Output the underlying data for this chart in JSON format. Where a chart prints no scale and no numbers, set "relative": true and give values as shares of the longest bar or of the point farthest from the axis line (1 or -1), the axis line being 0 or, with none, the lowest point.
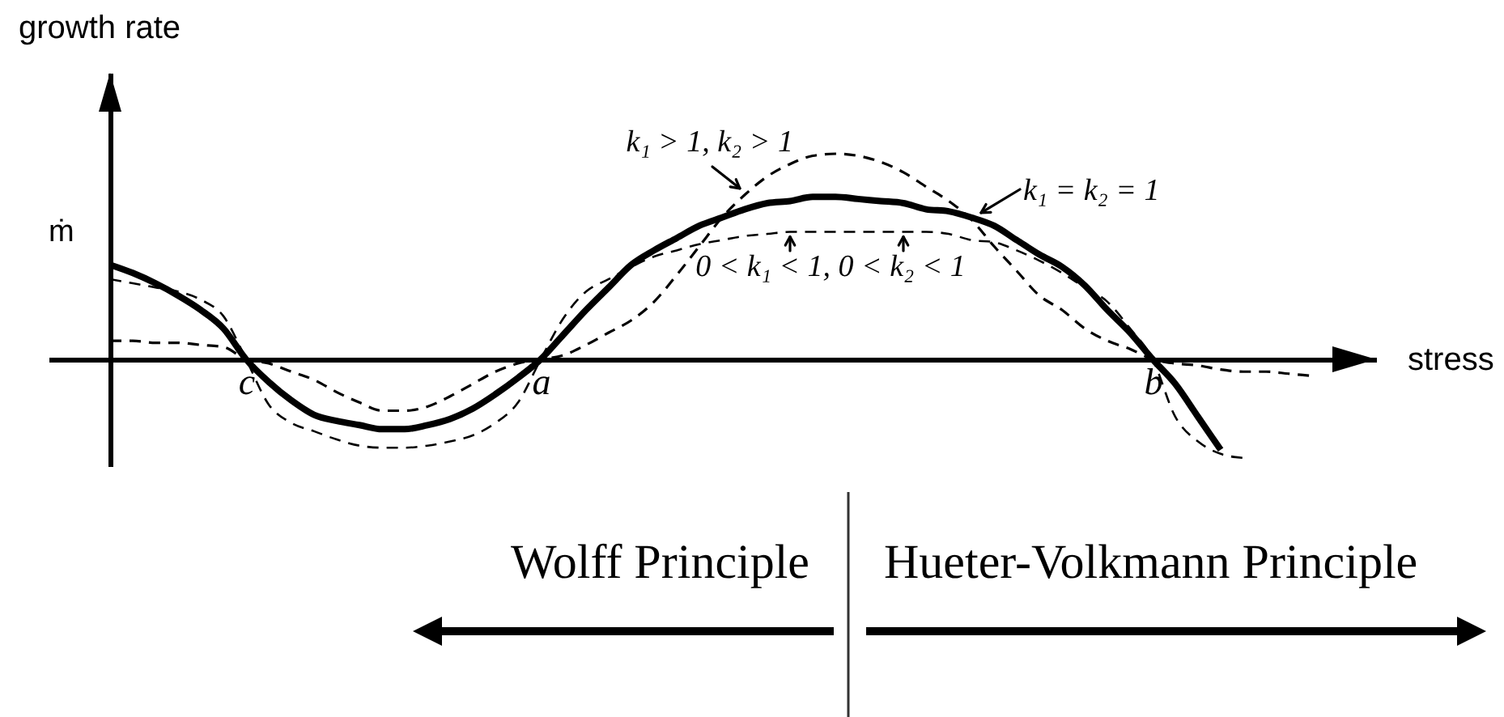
{
  "chart_data": {
    "type": "line",
    "relative": true,
    "ylabel": "growth rate",
    "xlabel": "stress",
    "tick_labels": "x",
    "categories": [
      null,
      null,
      null,
      null,
      null,
      null,
      "c",
      null,
      null,
      null,
      null,
      null,
      null,
      null,
      null,
      null,
      null,
      null,
      null,
      "a",
      null,
      null,
      null,
      null,
      null,
      null,
      null,
      null,
      null,
      null,
      null,
      null,
      null,
      null,
      null,
      null,
      null,
      null,
      null,
      null,
      null,
      null,
      null,
      null,
      null,
      null,
      "b",
      null,
      null,
      null,
      null,
      null,
      null,
      null
    ],
    "series": [
      {
        "name": "k₁ = k₂ = 1",
        "color": "#000000",
        "line_style": "solid",
        "values": [
          0.46,
          0.42,
          0.37,
          0.31,
          0.24,
          0.15,
          0,
          -0.11,
          -0.2,
          -0.27,
          -0.3,
          -0.32,
          -0.34,
          -0.34,
          -0.32,
          -0.29,
          -0.24,
          -0.17,
          -0.09,
          0,
          0.12,
          0.24,
          0.35,
          0.46,
          0.53,
          0.59,
          0.65,
          0.69,
          0.73,
          0.76,
          0.77,
          0.79,
          0.79,
          0.78,
          0.77,
          0.76,
          0.73,
          0.72,
          0.69,
          0.65,
          0.58,
          0.51,
          0.45,
          0.36,
          0.24,
          0.13,
          0,
          -0.12,
          -0.28,
          -0.44,
          null,
          null,
          null,
          null
        ]
      },
      {
        "name": "k₁ > 1, k₂ > 1",
        "color": "#000000",
        "line_style": "dashed",
        "values": [
          0.09,
          0.09,
          0.08,
          0.08,
          0.07,
          0.06,
          0,
          -0.02,
          -0.06,
          -0.1,
          -0.16,
          -0.21,
          -0.25,
          -0.25,
          -0.23,
          -0.18,
          -0.12,
          -0.06,
          -0.02,
          0,
          0.02,
          0.07,
          0.13,
          0.19,
          0.28,
          0.41,
          0.55,
          0.69,
          0.8,
          0.89,
          0.95,
          0.99,
          1,
          0.99,
          0.96,
          0.91,
          0.84,
          0.77,
          0.68,
          0.55,
          0.43,
          0.31,
          0.24,
          0.15,
          0.09,
          0.05,
          0,
          -0.02,
          -0.03,
          -0.05,
          -0.06,
          -0.06,
          -0.07,
          -0.08
        ]
      },
      {
        "name": "0 < k₁ < 1, 0 < k₂ < 1",
        "color": "#000000",
        "line_style": "dashed",
        "values": [
          0.39,
          0.37,
          0.35,
          0.33,
          0.29,
          0.21,
          0,
          -0.22,
          -0.31,
          -0.35,
          -0.39,
          -0.42,
          -0.43,
          -0.43,
          -0.42,
          -0.4,
          -0.37,
          -0.31,
          -0.21,
          0,
          0.2,
          0.33,
          0.39,
          0.45,
          0.5,
          0.53,
          0.56,
          0.58,
          0.6,
          0.61,
          0.62,
          0.62,
          0.62,
          0.62,
          0.62,
          0.62,
          0.62,
          0.61,
          0.58,
          0.57,
          0.53,
          0.48,
          0.42,
          0.35,
          0.28,
          0.15,
          0,
          -0.28,
          -0.4,
          -0.46,
          -0.48,
          null,
          null,
          null
        ]
      }
    ],
    "annotations": [
      "ṁ",
      "Wolff Principle",
      "Hueter-Volkmann Principle"
    ]
  }
}
